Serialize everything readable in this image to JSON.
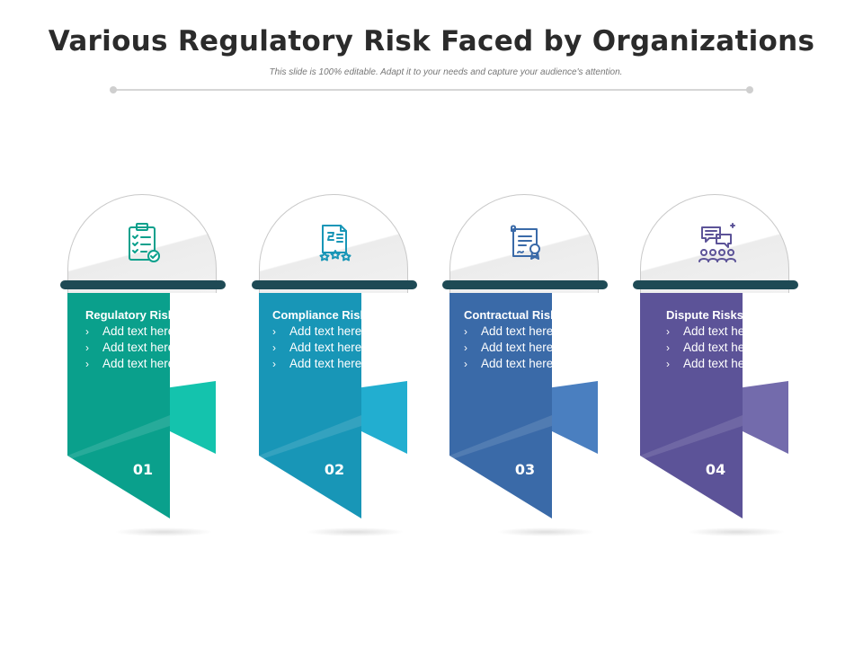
{
  "title": "Various Regulatory Risk Faced by Organizations",
  "subtitle": "This slide is 100% editable. Adapt it to your needs and capture your audience's attention.",
  "bullet_glyph": "›",
  "colors": {
    "teal": "#0aa08c",
    "teal_light": "#14c3ad",
    "cyan": "#1896b7",
    "cyan_light": "#22aed0",
    "blue": "#3a6aa8",
    "blue_light": "#4a7fc0",
    "purple": "#5c5398",
    "purple_light": "#736bac",
    "bar_dark": "#1e4a55"
  },
  "cards": [
    {
      "title": "Regulatory Risks",
      "items": [
        "Add text here",
        "Add text here",
        "Add text here"
      ],
      "number": "01",
      "icon": "clipboard-checklist-icon"
    },
    {
      "title": "Compliance Risks",
      "items": [
        "Add text here",
        "Add text here",
        "Add text here"
      ],
      "number": "02",
      "icon": "document-stars-icon"
    },
    {
      "title": "Contractual Risks",
      "items": [
        "Add text here",
        "Add text here",
        "Add text here"
      ],
      "number": "03",
      "icon": "certificate-scroll-icon"
    },
    {
      "title": "Dispute Risks",
      "items": [
        "Add text here",
        "Add text here",
        "Add text here"
      ],
      "number": "04",
      "icon": "people-chat-icon"
    }
  ]
}
